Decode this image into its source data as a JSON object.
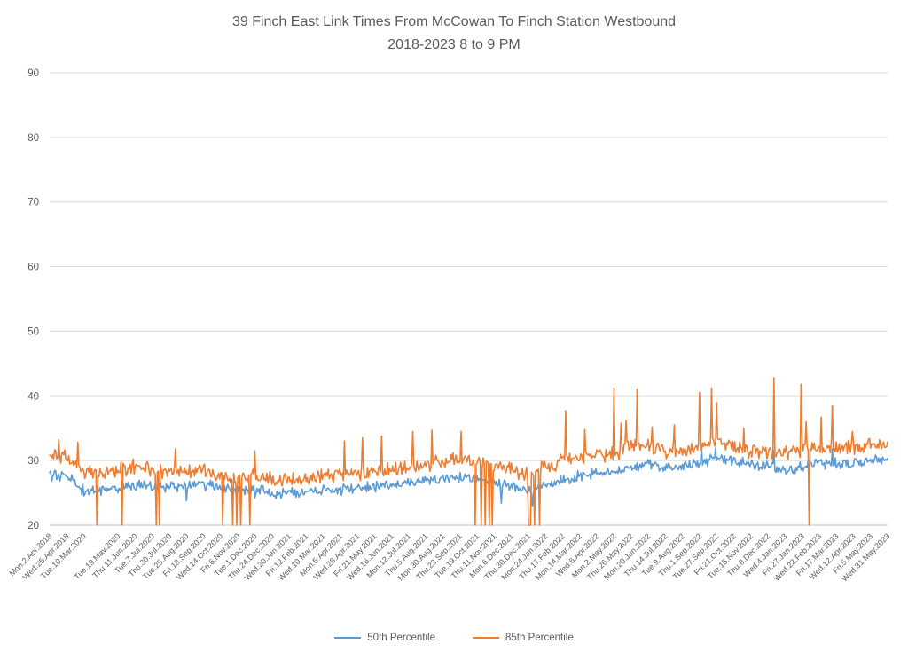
{
  "chart_data": {
    "type": "line",
    "title": "39 Finch East Link Times From McCowan To Finch Station Westbound",
    "subtitle": "2018-2023 8 to 9 PM",
    "ylabel": "",
    "xlabel": "",
    "ylim": [
      20,
      90
    ],
    "y_ticks": [
      90,
      80,
      70,
      60,
      50,
      40,
      30,
      20
    ],
    "grid": true,
    "legend_position": "bottom-center",
    "label_color": "#595959",
    "grid_color": "#d9d9d9",
    "axis_color": "#bfbfbf",
    "points_per_gap": 17,
    "x_tick_labels": [
      "Mon.2.Apr.2018",
      "Wed.25.Apr.2018",
      "Tue.10.Mar.2020",
      "",
      "Tue.19.May.2020",
      "Thu.11.Jun.2020",
      "Tue.7.Jul.2020",
      "Thu.30.Jul.2020",
      "Tue.25.Aug.2020",
      "Fri.18.Sep.2020",
      "Wed.14.Oct.2020",
      "Fri.6.Nov.2020",
      "Tue.1.Dec.2020",
      "Thu.24.Dec.2020",
      "Wed.20.Jan.2021",
      "Fri.12.Feb.2021",
      "Wed.10.Mar.2021",
      "Mon.5.Apr.2021",
      "Wed.28.Apr.2021",
      "Fri.21.May.2021",
      "Wed.16.Jun.2021",
      "Mon.12.Jul.2021",
      "Thu.5.Aug.2021",
      "Mon.30.Aug.2021",
      "Thu.23.Sep.2021",
      "Tue.19.Oct.2021",
      "Thu.11.Nov.2021",
      "Mon.6.Dec.2021",
      "Thu.30.Dec.2021",
      "Mon.24.Jan.2022",
      "Thu.17.Feb.2022",
      "Mon.14.Mar.2022",
      "Wed.6.Apr.2022",
      "Mon.2.May.2022",
      "Thu.26.May.2022",
      "Mon.20.Jun.2022",
      "Thu.14.Jul.2022",
      "Tue.9.Aug.2022",
      "Thu.1.Sep.2022",
      "Tue.27.Sep.2022",
      "Fri.21.Oct.2022",
      "Tue.15.Nov.2022",
      "Thu.8.Dec.2022",
      "Wed.4.Jan.2023",
      "Fri.27.Jan.2023",
      "Wed.22.Feb.2023",
      "Fri.17.Mar.2023",
      "Wed.12.Apr.2023",
      "Fri.5.May.2023",
      "Wed.31.May.2023"
    ],
    "series": [
      {
        "name": "50th Percentile",
        "color": "#5b9bd5",
        "noise_amp": 0.85,
        "seed": 3.7,
        "anchors": [
          27.5,
          27.8,
          25.2,
          25.3,
          25.8,
          26.2,
          26.0,
          26.0,
          26.0,
          26.2,
          25.8,
          25.5,
          25.5,
          25.0,
          25.0,
          25.2,
          25.5,
          25.5,
          25.8,
          26.0,
          26.2,
          26.5,
          27.0,
          27.2,
          27.5,
          27.0,
          26.5,
          26.0,
          25.2,
          26.0,
          27.0,
          27.5,
          28.0,
          28.0,
          29.0,
          29.5,
          29.0,
          29.0,
          29.5,
          30.5,
          30.0,
          29.5,
          29.0,
          28.5,
          29.0,
          29.5,
          29.5,
          29.5,
          30.0,
          30.0
        ],
        "events": [
          [
            32,
            24.7
          ],
          [
            136,
            23.8
          ],
          [
            204,
            24.2
          ],
          [
            449,
            23.4
          ],
          [
            480,
            23.0
          ],
          [
            648,
            32.3
          ],
          [
            662,
            32.0
          ],
          [
            720,
            31.5
          ],
          [
            778,
            31.8
          ]
        ],
        "drops": []
      },
      {
        "name": "85th Percentile",
        "color": "#ed7d31",
        "noise_amp": 1.15,
        "seed": 9.1,
        "anchors": [
          30.5,
          30.8,
          28.0,
          28.2,
          28.5,
          29.0,
          28.5,
          28.0,
          28.2,
          28.5,
          27.8,
          27.2,
          27.5,
          27.0,
          27.0,
          27.2,
          27.5,
          27.8,
          28.0,
          28.2,
          28.5,
          29.0,
          29.5,
          30.0,
          30.2,
          29.5,
          29.0,
          28.5,
          27.8,
          29.0,
          30.0,
          30.5,
          30.8,
          31.0,
          32.5,
          32.2,
          31.5,
          31.5,
          32.0,
          33.5,
          32.2,
          31.5,
          31.2,
          31.0,
          31.5,
          31.8,
          32.0,
          32.0,
          32.5,
          32.5
        ],
        "events": [
          [
            9,
            33.2
          ],
          [
            28,
            32.8
          ],
          [
            125,
            31.8
          ],
          [
            204,
            31.5
          ],
          [
            293,
            33.0
          ],
          [
            311,
            33.5
          ],
          [
            330,
            33.8
          ],
          [
            361,
            34.5
          ],
          [
            380,
            34.7
          ],
          [
            409,
            34.5
          ],
          [
            513,
            37.7
          ],
          [
            532,
            34.8
          ],
          [
            561,
            41.2
          ],
          [
            568,
            35.8
          ],
          [
            573,
            36.2
          ],
          [
            584,
            41.0
          ],
          [
            599,
            35.2
          ],
          [
            621,
            35.5
          ],
          [
            646,
            40.5
          ],
          [
            658,
            41.2
          ],
          [
            663,
            39.0
          ],
          [
            690,
            35.0
          ],
          [
            720,
            42.8
          ],
          [
            747,
            41.8
          ],
          [
            752,
            36.0
          ],
          [
            767,
            36.7
          ],
          [
            778,
            38.5
          ],
          [
            798,
            34.5
          ]
        ],
        "drops": [
          47,
          72,
          106,
          109,
          172,
          182,
          186,
          190,
          199,
          423,
          429,
          433,
          437,
          440,
          476,
          477,
          478,
          482,
          487,
          755
        ]
      }
    ]
  }
}
